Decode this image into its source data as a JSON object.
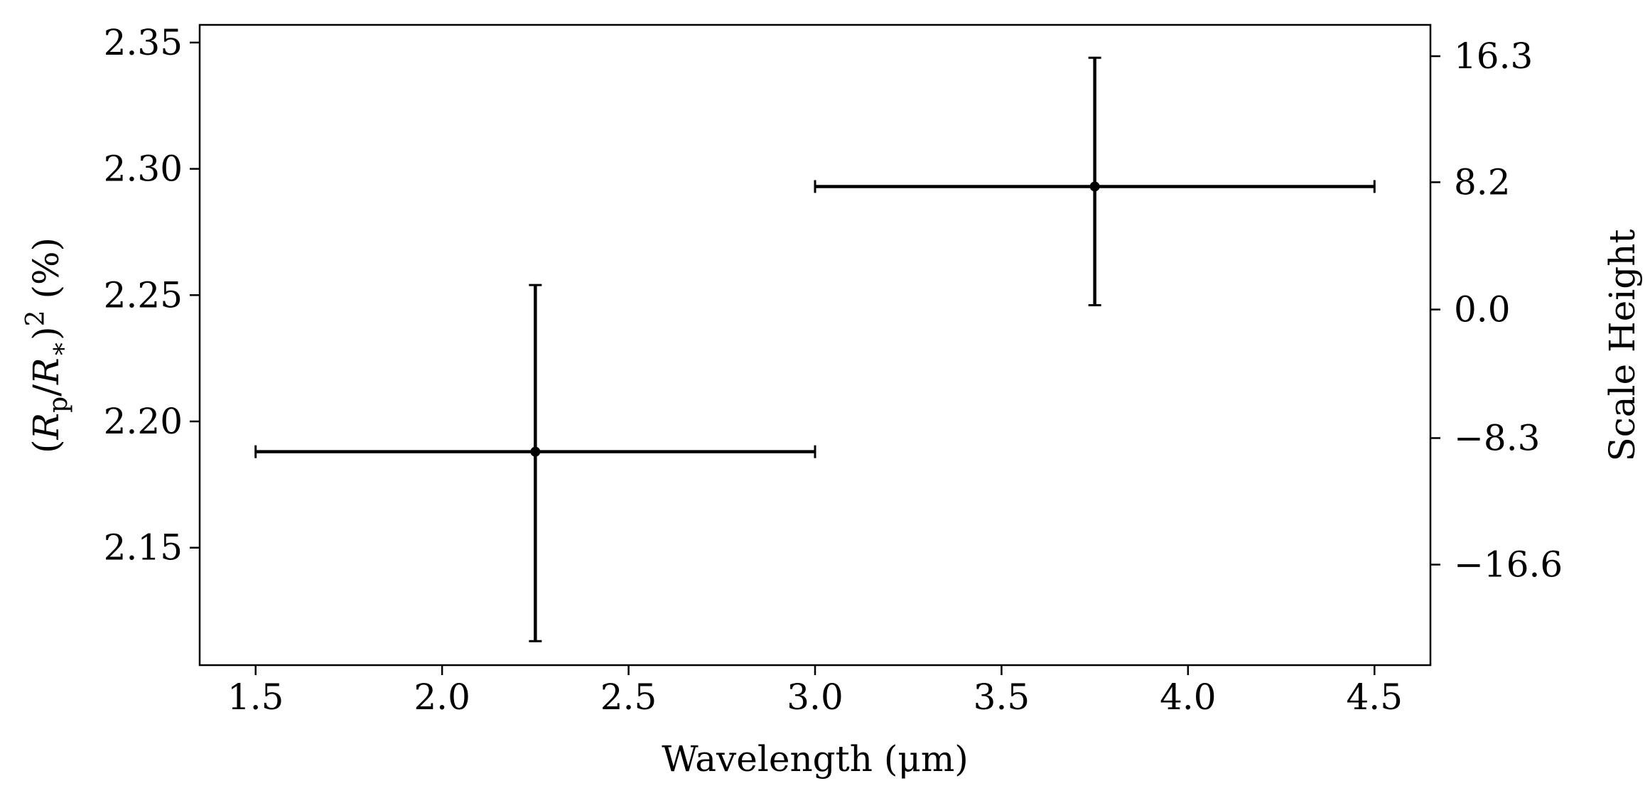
{
  "chart_data": {
    "type": "scatter",
    "title": "",
    "xlabel": "Wavelength (μm)",
    "ylabel": {
      "open": "(",
      "r1": "R",
      "sub1": "p",
      "slash": "/",
      "r2": "R",
      "sub2": "∗",
      "close": ")",
      "sup": "2",
      "unit": " (%)"
    },
    "y2label": "Scale Height",
    "xlim": [
      1.35,
      4.65
    ],
    "ylim": [
      2.1035,
      2.357
    ],
    "grid": false,
    "legend": "none",
    "x_ticks": [
      {
        "value": 1.5,
        "label": "1.5"
      },
      {
        "value": 2.0,
        "label": "2.0"
      },
      {
        "value": 2.5,
        "label": "2.5"
      },
      {
        "value": 3.0,
        "label": "3.0"
      },
      {
        "value": 3.5,
        "label": "3.5"
      },
      {
        "value": 4.0,
        "label": "4.0"
      },
      {
        "value": 4.5,
        "label": "4.5"
      }
    ],
    "y_ticks": [
      {
        "value": 2.15,
        "label": "2.15"
      },
      {
        "value": 2.2,
        "label": "2.20"
      },
      {
        "value": 2.25,
        "label": "2.25"
      },
      {
        "value": 2.3,
        "label": "2.30"
      },
      {
        "value": 2.35,
        "label": "2.35"
      }
    ],
    "y2_ticks": [
      {
        "value": 2.3446,
        "label": "16.3"
      },
      {
        "value": 2.2947,
        "label": "8.2"
      },
      {
        "value": 2.2443,
        "label": "0.0"
      },
      {
        "value": 2.1934,
        "label": "−8.3"
      },
      {
        "value": 2.1433,
        "label": "−16.6"
      }
    ],
    "points": [
      {
        "x": 2.25,
        "y": 2.188,
        "xerr_low": 0.75,
        "xerr_high": 0.75,
        "yerr_low": 0.075,
        "yerr_high": 0.066
      },
      {
        "x": 3.75,
        "y": 2.293,
        "xerr_low": 0.75,
        "xerr_high": 0.75,
        "yerr_low": 0.047,
        "yerr_high": 0.051
      }
    ],
    "color": "#000000"
  }
}
